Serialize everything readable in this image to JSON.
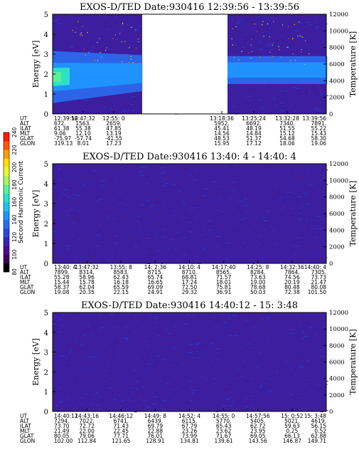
{
  "colorbar": {
    "label": "Second Harmonic Current",
    "ticks": [
      "80",
      "100",
      "120",
      "140",
      "160",
      "180",
      "200",
      "220",
      "240"
    ],
    "colors": [
      "#000000",
      "#3a0060",
      "#4b0a8c",
      "#3a22b8",
      "#2d46d8",
      "#2a6cf0",
      "#2095ff",
      "#22c0f0",
      "#2de0c8",
      "#58f29a",
      "#a6f560",
      "#e8f53a",
      "#ffe000",
      "#ffa000",
      "#ff5800",
      "#ff1a00"
    ]
  },
  "chart_data": [
    {
      "type": "heatmap",
      "title": "EXOS-D/TED   Date:930416  12:39:56 - 13:39:56",
      "ylabel": "Energy [eV]",
      "y2label": "Temperature [K]",
      "ylim": [
        0,
        5
      ],
      "y2lim": [
        0,
        12000
      ],
      "yticks": [
        "0",
        "1",
        "2",
        "3",
        "4",
        "5"
      ],
      "y2ticks": [
        "0",
        "2000",
        "4000",
        "6000",
        "8000",
        "10000",
        "12000"
      ],
      "data_gap": true,
      "ephemeris": [
        {
          "name": "UT",
          "values": [
            "12:39:56",
            "12:47:32",
            "12:55: 0",
            "13:18:36",
            "13:25:24",
            "13:32:28",
            "13:39:56"
          ]
        },
        {
          "name": "ALT",
          "values": [
            "672.",
            "1563.",
            "2659.",
            "5952.",
            "6692.",
            "7340.",
            "7891."
          ]
        },
        {
          "name": "ILAT",
          "values": [
            "61.38",
            "55.38",
            "47.85",
            "45.41",
            "48.19",
            "51.55",
            "55.22"
          ]
        },
        {
          "name": "MLT",
          "values": [
            "9.06",
            "12.10",
            "13.19",
            "14.56",
            "14.84",
            "15.12",
            "15.43"
          ]
        },
        {
          "name": "GLAT",
          "values": [
            "-75.97",
            "-57.74",
            "-41.55",
            "48.53",
            "51.37",
            "54.68",
            "58.30"
          ]
        },
        {
          "name": "GLON",
          "values": [
            "319.13",
            "8.01",
            "17.23",
            "15.95",
            "17.12",
            "18.06",
            "19.06"
          ]
        }
      ]
    },
    {
      "type": "heatmap",
      "title": "EXOS-D/TED   Date:930416  13:40: 4 - 14:40: 4",
      "ylabel": "Energy [eV]",
      "y2label": "Temperature [K]",
      "ylim": [
        0,
        5
      ],
      "y2lim": [
        0,
        12000
      ],
      "yticks": [
        "0",
        "1",
        "2",
        "3",
        "4",
        "5"
      ],
      "y2ticks": [
        "0",
        "2000",
        "4000",
        "6000",
        "8000",
        "10000",
        "12000"
      ],
      "data_gap": false,
      "ephemeris": [
        {
          "name": "UT",
          "values": [
            "13:40: 4",
            "13:47:32",
            "13:55: 8",
            "14: 2:36",
            "14:10: 4",
            "14:17:40",
            "14:25: 8",
            "14:32:36",
            "14:40: 4"
          ]
        },
        {
          "name": "ALT",
          "values": [
            "7899.",
            "8314.",
            "8583.",
            "8715.",
            "8710.",
            "8565.",
            "8284.",
            "7864.",
            "7305."
          ]
        },
        {
          "name": "ILAT",
          "values": [
            "55.28",
            "58.96",
            "62.43",
            "65.74",
            "68.81",
            "71.57",
            "73.63",
            "74.56",
            "73.73"
          ]
        },
        {
          "name": "MLT",
          "values": [
            "15.44",
            "15.78",
            "16.18",
            "16.65",
            "17.24",
            "18.01",
            "19.00",
            "20.19",
            "21.47"
          ]
        },
        {
          "name": "GLAT",
          "values": [
            "58.37",
            "62.04",
            "65.59",
            "69.09",
            "72.50",
            "75.81",
            "78.68",
            "80.48",
            "80.08"
          ]
        },
        {
          "name": "GLON",
          "values": [
            "19.08",
            "20.35",
            "22.15",
            "24.91",
            "29.32",
            "36.91",
            "50.03",
            "72.38",
            "101.50"
          ]
        }
      ]
    },
    {
      "type": "heatmap",
      "title": "EXOS-D/TED   Date:930416  14:40:12 - 15: 3:48",
      "ylabel": "Energy [eV]",
      "y2label": "Temperature [K]",
      "ylim": [
        0,
        5
      ],
      "y2lim": [
        0,
        12000
      ],
      "yticks": [
        "0",
        "1",
        "2",
        "3",
        "4",
        "5"
      ],
      "y2ticks": [
        "0",
        "2000",
        "4000",
        "6000",
        "8000",
        "10000",
        "12000"
      ],
      "data_gap": false,
      "ephemeris": [
        {
          "name": "UT",
          "values": [
            "14:40:12",
            "14:43:16",
            "14:46:12",
            "14:49: 8",
            "14:52: 4",
            "14:55: 0",
            "14:57:56",
            "15: 0:52",
            "15: 3:48"
          ]
        },
        {
          "name": "ALT",
          "values": [
            "7294.",
            "7022.",
            "6741.",
            "6439.",
            "6115.",
            "5770.",
            "5405.",
            "5021.",
            "4619."
          ]
        },
        {
          "name": "ILAT",
          "values": [
            "73.70",
            "72.72",
            "71.43",
            "69.79",
            "67.79",
            "65.43",
            "62.72",
            "59.63",
            "56.15"
          ]
        },
        {
          "name": "MLT",
          "values": [
            "21.49",
            "22.00",
            "22.45",
            "22.88",
            "23.26",
            "23.62",
            "23.95",
            "0.25",
            "0.52"
          ]
        },
        {
          "name": "GLAT",
          "values": [
            "80.05",
            "79.06",
            "77.71",
            "76.01",
            "73.99",
            "71.67",
            "69.05",
            "66.13",
            "62.88"
          ]
        },
        {
          "name": "GLON",
          "values": [
            "102.00",
            "112.84",
            "121.65",
            "128.91",
            "134.81",
            "139.61",
            "143.56",
            "146.87",
            "149.71"
          ]
        }
      ]
    }
  ]
}
